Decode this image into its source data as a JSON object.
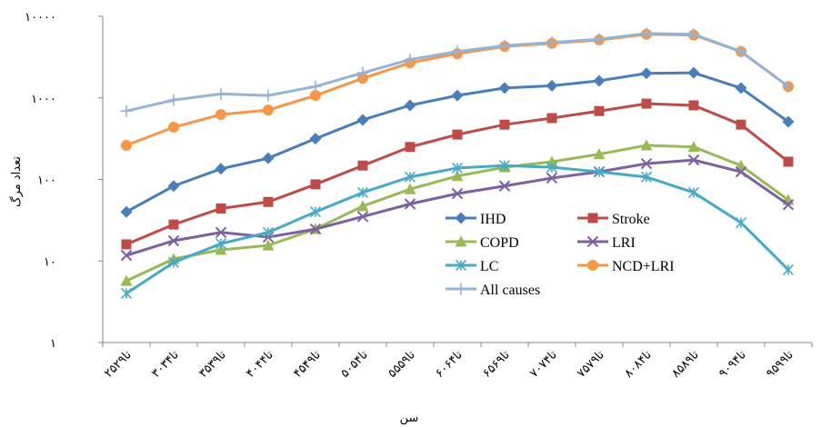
{
  "chart_data": {
    "type": "line",
    "ylabel": "تعداد مرگ",
    "xlabel": "سن",
    "log_scale_y": true,
    "grid": false,
    "legend_loc": "lower center",
    "categories": [
      "۲۵تا۲۹",
      "۳۰تا۳۴",
      "۳۵تا۳۹",
      "۴۰تا۴۴",
      "۴۵تا۴۹",
      "۵۰تا۵۴",
      "۵۵تا۵۹",
      "۶۰تا۶۴",
      "۶۵تا۶۹",
      "۷۰تا۷۴",
      "۷۵تا۷۹",
      "۸۰تا۸۴",
      "۸۵تا۸۹",
      "۹۰تا۹۴",
      "۹۵تا۹۹"
    ],
    "ylim": [
      1,
      10000
    ],
    "yticks": [
      {
        "value": 1,
        "label": "۱"
      },
      {
        "value": 10,
        "label": "۱۰"
      },
      {
        "value": 100,
        "label": "۱۰۰"
      },
      {
        "value": 1000,
        "label": "۱۰۰۰"
      },
      {
        "value": 10000,
        "label": "۱۰۰۰۰"
      }
    ],
    "series": [
      {
        "name": "IHD",
        "color": "#4a7ebb",
        "marker": "diamond",
        "values": [
          40,
          83,
          135,
          182,
          316,
          537,
          810,
          1070,
          1320,
          1410,
          1620,
          2000,
          2030,
          1320,
          510
        ]
      },
      {
        "name": "Stroke",
        "color": "#be4b48",
        "marker": "square",
        "values": [
          16,
          28,
          44,
          53,
          87,
          148,
          250,
          355,
          470,
          565,
          690,
          850,
          810,
          470,
          165
        ]
      },
      {
        "name": "COPD",
        "color": "#98b954",
        "marker": "triangle",
        "values": [
          5.7,
          10.6,
          13.7,
          15.5,
          24.6,
          47,
          76,
          110,
          141,
          165,
          204,
          262,
          250,
          148,
          56
        ]
      },
      {
        "name": "LRI",
        "color": "#7d60a0",
        "marker": "x",
        "values": [
          11.7,
          17.7,
          22.4,
          19.6,
          24.6,
          35,
          50,
          67,
          83,
          104,
          124,
          156,
          173,
          124,
          49
        ]
      },
      {
        "name": "LC",
        "color": "#46aac5",
        "marker": "star",
        "values": [
          4.0,
          9.6,
          16.3,
          22.4,
          40,
          69,
          107,
          138,
          148,
          141,
          124,
          107,
          69,
          29.5,
          7.8
        ]
      },
      {
        "name": "NCD+LRI",
        "color": "#f79646",
        "marker": "circle",
        "values": [
          262,
          437,
          625,
          710,
          1070,
          1740,
          2690,
          3480,
          4270,
          4660,
          5130,
          6030,
          5890,
          3700,
          1380
        ]
      },
      {
        "name": "All causes",
        "color": "#95b3d7",
        "marker": "plus",
        "values": [
          690,
          940,
          1120,
          1070,
          1380,
          2030,
          2950,
          3700,
          4370,
          4790,
          5240,
          6170,
          6030,
          3700,
          1380
        ]
      }
    ]
  }
}
